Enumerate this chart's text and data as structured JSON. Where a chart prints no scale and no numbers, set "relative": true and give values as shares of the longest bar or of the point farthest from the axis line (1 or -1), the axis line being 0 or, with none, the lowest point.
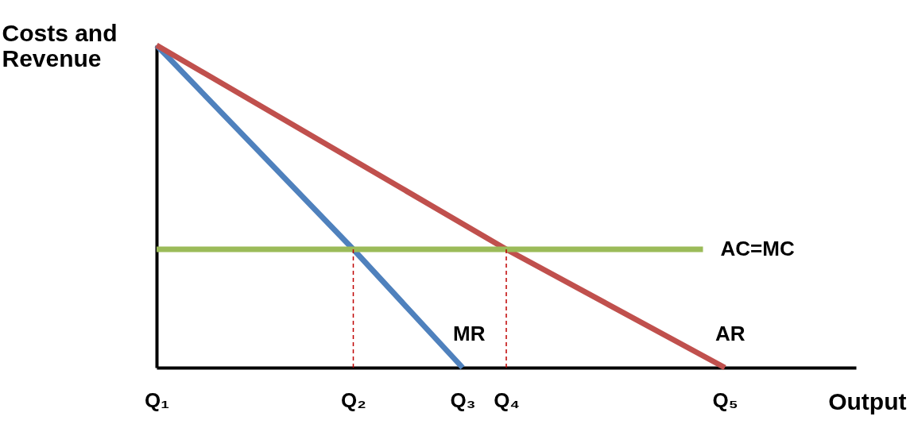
{
  "chart_data": {
    "type": "line",
    "relative": true,
    "xlabel": "Output",
    "ylabel": "Costs and Revenue",
    "tick_labels": "x",
    "grid": false,
    "legend": false,
    "marker": "none",
    "categories": [
      "Q₁",
      null,
      null,
      null,
      null,
      null,
      null,
      null,
      null,
      "Q₂",
      null,
      null,
      null,
      null,
      "Q₃",
      null,
      "Q₄",
      null,
      null,
      null,
      null,
      null,
      null,
      null,
      null,
      null,
      "Q₅",
      null,
      null,
      null,
      null,
      null,
      null
    ],
    "series": [
      {
        "name": "MR",
        "color": "#4f81bd",
        "values": [
          1,
          null,
          null,
          null,
          null,
          null,
          null,
          null,
          null,
          0.367,
          null,
          null,
          null,
          null,
          0,
          null,
          null,
          null,
          null,
          null,
          null,
          null,
          null,
          null,
          null,
          null,
          null,
          null,
          null,
          null,
          null,
          null,
          null
        ]
      },
      {
        "name": "AR",
        "color": "#c0504d",
        "values": [
          1,
          null,
          null,
          null,
          null,
          null,
          null,
          null,
          null,
          null,
          null,
          null,
          null,
          null,
          null,
          null,
          0.367,
          null,
          null,
          null,
          null,
          null,
          null,
          null,
          null,
          null,
          0,
          null,
          null,
          null,
          null,
          null,
          null
        ]
      },
      {
        "name": "AC=MC",
        "color": "#9bbb59",
        "values": [
          0.367,
          null,
          null,
          null,
          null,
          null,
          null,
          null,
          null,
          null,
          null,
          null,
          null,
          null,
          null,
          null,
          null,
          null,
          null,
          null,
          null,
          null,
          null,
          null,
          null,
          0.367,
          null,
          null,
          null,
          null,
          null,
          null,
          null
        ]
      },
      {
        "color": "#c00000",
        "x": [
          "Q₂",
          "Q₂"
        ],
        "values": [
          0,
          0.367
        ],
        "line_style": "dashed"
      },
      {
        "color": "#c00000",
        "x": [
          "Q₄",
          "Q₄"
        ],
        "values": [
          0,
          0.367
        ],
        "line_style": "dashed"
      }
    ]
  }
}
